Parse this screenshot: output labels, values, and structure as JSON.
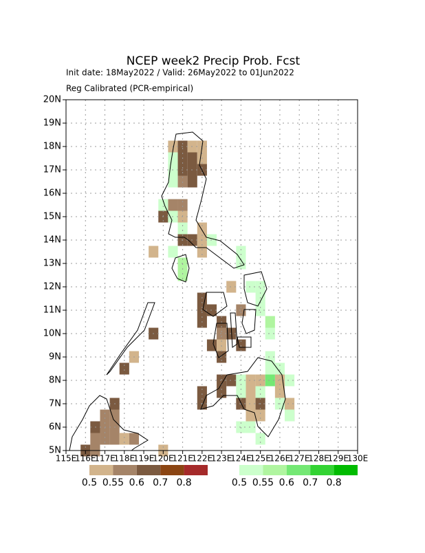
{
  "chart_data": {
    "type": "grid-map",
    "title": "NCEP week2 Precip Prob. Fcst",
    "subtitle_lines": [
      "Init date: 18May2022 / Valid: 26May2022 to 01Jun2022",
      "Reg Calibrated (PCR-empirical)"
    ],
    "xlim": [
      115,
      130
    ],
    "ylim": [
      5,
      20
    ],
    "xticks": [
      {
        "value": 115,
        "label": "115E"
      },
      {
        "value": 116,
        "label": "116E"
      },
      {
        "value": 117,
        "label": "117E"
      },
      {
        "value": 118,
        "label": "118E"
      },
      {
        "value": 119,
        "label": "119E"
      },
      {
        "value": 120,
        "label": "120E"
      },
      {
        "value": 121,
        "label": "121E"
      },
      {
        "value": 122,
        "label": "122E"
      },
      {
        "value": 123,
        "label": "123E"
      },
      {
        "value": 124,
        "label": "124E"
      },
      {
        "value": 125,
        "label": "125E"
      },
      {
        "value": 126,
        "label": "126E"
      },
      {
        "value": 127,
        "label": "127E"
      },
      {
        "value": 128,
        "label": "128E"
      },
      {
        "value": 129,
        "label": "129E"
      },
      {
        "value": 130,
        "label": "130E"
      }
    ],
    "yticks": [
      {
        "value": 5,
        "label": "5N"
      },
      {
        "value": 6,
        "label": "6N"
      },
      {
        "value": 7,
        "label": "7N"
      },
      {
        "value": 8,
        "label": "8N"
      },
      {
        "value": 9,
        "label": "9N"
      },
      {
        "value": 10,
        "label": "10N"
      },
      {
        "value": 11,
        "label": "11N"
      },
      {
        "value": 12,
        "label": "12N"
      },
      {
        "value": 13,
        "label": "13N"
      },
      {
        "value": 14,
        "label": "14N"
      },
      {
        "value": 15,
        "label": "15N"
      },
      {
        "value": 16,
        "label": "16N"
      },
      {
        "value": 17,
        "label": "17N"
      },
      {
        "value": 18,
        "label": "18N"
      },
      {
        "value": 19,
        "label": "19N"
      },
      {
        "value": 20,
        "label": "20N"
      }
    ],
    "grid": true,
    "cell_size": 0.5,
    "levels": [
      0.5,
      0.55,
      0.6,
      0.7,
      0.8
    ],
    "below_colors": [
      "#d2b48c",
      "#a58468",
      "#7b5a40",
      "#8b4513",
      "#a52a2a"
    ],
    "above_colors": [
      "#ccffcc",
      "#b0f5a0",
      "#74e874",
      "#33d333",
      "#00bb00"
    ],
    "below_normal": {
      "lon": [
        120.5,
        121,
        121.5,
        122,
        121,
        121.5,
        122,
        120.5,
        121,
        121.5,
        122,
        121,
        121.5,
        120.5,
        121,
        120,
        121,
        122,
        121,
        121.5,
        122,
        119.5,
        122,
        122,
        122,
        122.5,
        122,
        123,
        123,
        123.5,
        122.5,
        123,
        124,
        123,
        124,
        123.5,
        119.5,
        118.5,
        118,
        123,
        123.5,
        123,
        122,
        122,
        124,
        124.5,
        124.5,
        124.5,
        125,
        124.5,
        125,
        126,
        126,
        126.5,
        126.5,
        125,
        116.5,
        116.5,
        117,
        117,
        117,
        117.5,
        117.5,
        117.5,
        117.5,
        116,
        116.5,
        118,
        118.5,
        120
      ],
      "lat": [
        18,
        18,
        18,
        18,
        17.5,
        17.5,
        17.5,
        17,
        17,
        17,
        17,
        16.5,
        16.5,
        15.5,
        15.5,
        15,
        15,
        14.5,
        14,
        14,
        14,
        13.5,
        13.5,
        11.5,
        11,
        11,
        10.5,
        10.5,
        10,
        10,
        9.5,
        9.5,
        9.5,
        9,
        11,
        12,
        10,
        9,
        8.5,
        8,
        8,
        7.5,
        7.5,
        7,
        7,
        7.5,
        7,
        6.5,
        6.5,
        8,
        8,
        8,
        7.5,
        7,
        6.5,
        7,
        6,
        5.5,
        6.5,
        6,
        5.5,
        7,
        6.5,
        6,
        5.5,
        5,
        5,
        5.5,
        5.5,
        5
      ],
      "values": [
        0.5,
        0.6,
        0.5,
        0.5,
        0.6,
        0.6,
        0.5,
        0.5,
        0.6,
        0.6,
        0.6,
        0.55,
        0.6,
        0.55,
        0.55,
        0.6,
        0.5,
        0.5,
        0.6,
        0.6,
        0.5,
        0.5,
        0.5,
        0.6,
        0.6,
        0.6,
        0.6,
        0.6,
        0.55,
        0.6,
        0.6,
        0.5,
        0.6,
        0.6,
        0.55,
        0.5,
        0.6,
        0.5,
        0.6,
        0.6,
        0.6,
        0.6,
        0.6,
        0.6,
        0.6,
        0.5,
        0.5,
        0.5,
        0.5,
        0.5,
        0.5,
        0.5,
        0.5,
        0.5,
        0.55,
        0.6,
        0.6,
        0.55,
        0.55,
        0.55,
        0.55,
        0.6,
        0.55,
        0.55,
        0.55,
        0.6,
        0.55,
        0.5,
        0.55,
        0.5
      ]
    },
    "above_normal": {
      "lon": [
        120.5,
        120.5,
        120.5,
        120,
        120.5,
        121,
        120.5,
        121,
        121,
        122.5,
        124,
        124,
        124.5,
        125,
        125,
        125,
        125.5,
        125.5,
        125.5,
        125.5,
        125.5,
        126,
        125,
        124,
        126.5,
        126,
        124,
        124.5,
        125,
        124,
        126.5
      ],
      "lat": [
        17.5,
        17,
        16.5,
        15.5,
        15,
        14.5,
        13.5,
        13,
        12.5,
        14,
        13.5,
        13,
        12,
        12,
        11.5,
        11,
        10.5,
        10,
        9,
        8.5,
        8,
        8.5,
        7.5,
        7.5,
        8,
        7,
        6,
        6,
        5.5,
        8,
        6.5
      ],
      "values": [
        0.5,
        0.5,
        0.5,
        0.5,
        0.5,
        0.5,
        0.5,
        0.55,
        0.55,
        0.5,
        0.5,
        0.5,
        0.5,
        0.5,
        0.5,
        0.5,
        0.55,
        0.5,
        0.5,
        0.5,
        0.6,
        0.5,
        0.5,
        0.5,
        0.5,
        0.5,
        0.5,
        0.5,
        0.5,
        0.5,
        0.5
      ]
    }
  }
}
